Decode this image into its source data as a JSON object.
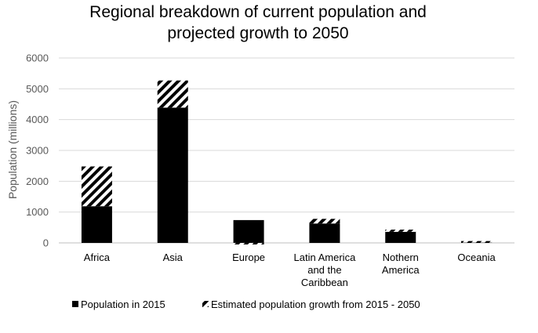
{
  "chart_data": {
    "type": "bar",
    "stacked": true,
    "title_lines": [
      "Regional breakdown of current population and",
      "projected growth to 2050"
    ],
    "ylabel": "Population (millions)",
    "xlabel": "",
    "ylim": [
      0,
      6000
    ],
    "yticks": [
      0,
      1000,
      2000,
      3000,
      4000,
      5000,
      6000
    ],
    "grid": true,
    "legend_position": "bottom",
    "categories": [
      [
        "Africa"
      ],
      [
        "Asia"
      ],
      [
        "Europe"
      ],
      [
        "Latin America",
        "and the",
        "Caribbean"
      ],
      [
        "Nothern",
        "America"
      ],
      [
        "Oceania"
      ]
    ],
    "series": [
      {
        "name": "Population in 2015",
        "pattern": "solid",
        "color": "#000000",
        "values": [
          1190,
          4390,
          740,
          630,
          360,
          40
        ]
      },
      {
        "name": "Estimated population growth from 2015 - 2050",
        "pattern": "diagonal-stripes",
        "color": "#000000",
        "values": [
          1290,
          880,
          -20,
          150,
          70,
          20
        ]
      }
    ]
  }
}
